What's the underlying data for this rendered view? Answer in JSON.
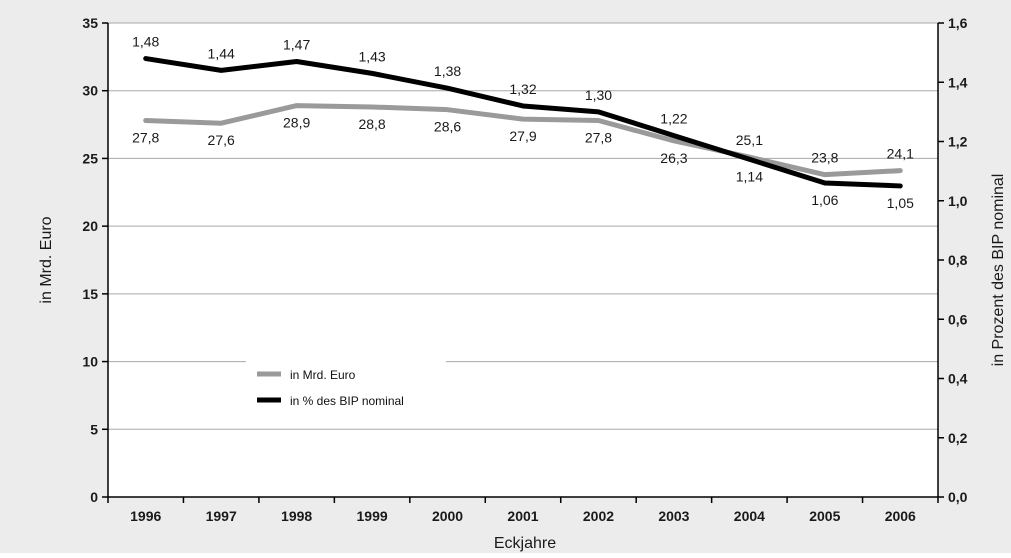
{
  "chart_data": {
    "type": "line",
    "xlabel": "Eckjahre",
    "ylabel_left": "in Mrd. Euro",
    "ylabel_right": "in Prozent des BIP nominal",
    "categories": [
      "1996",
      "1997",
      "1998",
      "1999",
      "2000",
      "2001",
      "2002",
      "2003",
      "2004",
      "2005",
      "2006"
    ],
    "y_left": {
      "min": 0,
      "max": 35,
      "ticks": [
        0,
        5,
        10,
        15,
        20,
        25,
        30,
        35
      ],
      "tick_labels": [
        "0",
        "5",
        "10",
        "15",
        "20",
        "25",
        "30",
        "35"
      ]
    },
    "y_right": {
      "min": 0,
      "max": 1.6,
      "ticks": [
        0,
        0.2,
        0.4,
        0.6,
        0.8,
        1.0,
        1.2,
        1.4,
        1.6
      ],
      "tick_labels": [
        "0,0",
        "0,2",
        "0,4",
        "0,6",
        "0,8",
        "1,0",
        "1,2",
        "1,4",
        "1,6"
      ]
    },
    "grid": true,
    "legend_position": "lower-left inside plot",
    "series": [
      {
        "name": "in Mrd. Euro",
        "axis": "left",
        "color": "#9a9a9a",
        "values": [
          27.8,
          27.6,
          28.9,
          28.8,
          28.6,
          27.9,
          27.8,
          26.3,
          25.1,
          23.8,
          24.1
        ],
        "labels": [
          "27,8",
          "27,6",
          "28,9",
          "28,8",
          "28,6",
          "27,9",
          "27,8",
          "26,3",
          "25,1",
          "23,8",
          "24,1"
        ]
      },
      {
        "name": "in % des BIP nominal",
        "axis": "right",
        "color": "#000000",
        "values": [
          1.48,
          1.44,
          1.47,
          1.43,
          1.38,
          1.32,
          1.3,
          1.22,
          1.14,
          1.06,
          1.05
        ],
        "labels": [
          "1,48",
          "1,44",
          "1,47",
          "1,43",
          "1,38",
          "1,32",
          "1,30",
          "1,22",
          "1,14",
          "1,06",
          "1,05"
        ]
      }
    ]
  },
  "colors": {
    "background": "#ececec",
    "plot_background": "#ffffff",
    "grid": "#a8a8a8"
  }
}
